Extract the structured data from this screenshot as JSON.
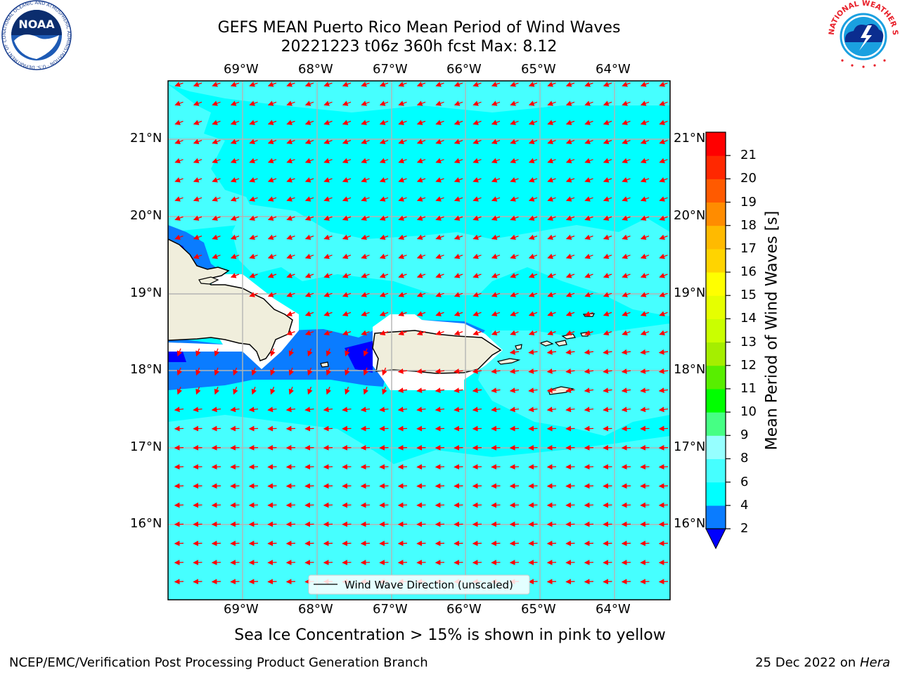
{
  "header": {
    "title_line1": "GEFS MEAN Puerto Rico Mean Period of Wind Waves",
    "title_line2": "20221223 t06z 360h fcst   Max: 8.12"
  },
  "logos": {
    "left": "NOAA",
    "left_ring_text": "NATIONAL OCEANIC AND ATMOSPHERIC ADMINISTRATION · U.S. DEPARTMENT OF COMMERCE",
    "right_ring_text": "NATIONAL WEATHER SERVICE"
  },
  "map": {
    "lon_labels": [
      "69°W",
      "68°W",
      "67°W",
      "66°W",
      "65°W",
      "64°W"
    ],
    "lat_labels": [
      "21°N",
      "20°N",
      "19°N",
      "18°N",
      "17°N",
      "16°N"
    ],
    "legend_label": "Wind Wave Direction (unscaled)",
    "colors": {
      "ocean_4_6": "#00ffff",
      "ocean_6_8": "#46ffff",
      "ocean_2_4": "#0a7cff",
      "ocean_lt2": "#0000ff",
      "land": "#f0eedc",
      "arrow": "#ff0000"
    }
  },
  "colorbar": {
    "title": "Mean Period of Wind Waves [s]",
    "ticks": [
      "2",
      "4",
      "6",
      "8",
      "9",
      "10",
      "11",
      "12",
      "13",
      "14",
      "15",
      "16",
      "17",
      "18",
      "19",
      "20",
      "21"
    ],
    "colors": [
      "#0a7cff",
      "#00ffff",
      "#46ffff",
      "#96ffff",
      "#46ff84",
      "#00ff00",
      "#58ee00",
      "#a5ee00",
      "#caff00",
      "#e6ff00",
      "#ffff00",
      "#ffd400",
      "#ffba00",
      "#ff8c00",
      "#ff5a00",
      "#ff2800",
      "#ff0000"
    ],
    "extend_color": "#0000ff"
  },
  "caption": "Sea Ice Concentration > 15% is shown in pink to yellow",
  "footer": {
    "left": "NCEP/EMC/Verification Post Processing Product Generation Branch",
    "right_date": "25 Dec 2022 on",
    "right_host": "Hera"
  }
}
